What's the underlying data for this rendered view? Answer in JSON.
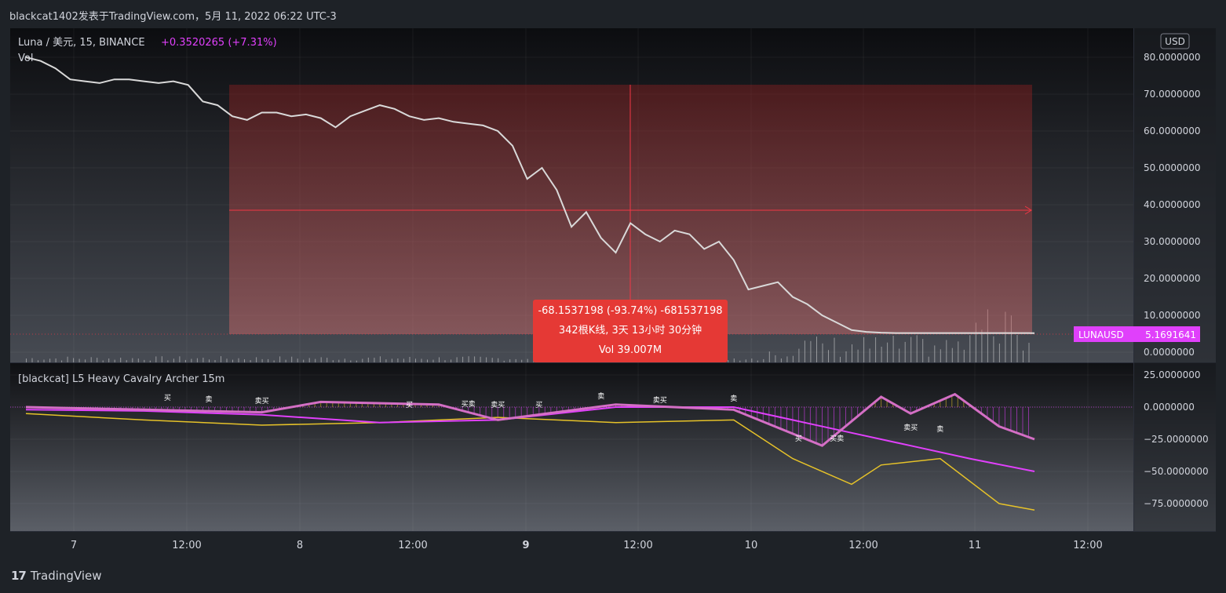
{
  "caption": "blackcat1402发表于TradingView.com，5月 11, 2022 06:22 UTC-3",
  "footer_brand": "TradingView",
  "footer_logo_glyph": "17",
  "currency_button": "USD",
  "legend": {
    "symbol": "Luna / 美元, 15, BINANCE",
    "change": "+0.3520265 (+7.31%)",
    "vol": "Vol"
  },
  "indicator_title": "[blackcat] L5 Heavy Cavalry Archer 15m",
  "measure_box": {
    "line1": "-68.1537198 (-93.74%) -681537198",
    "line2": "342根K线, 3天 13小时 30分钟",
    "line3": "Vol 39.007M"
  },
  "price_tag": {
    "symbol": "LUNAUSD",
    "value": "5.1691641"
  },
  "colors": {
    "background": "#1e2227",
    "price_line": "#d9d9d9",
    "measure_fill": "#f23645",
    "accent_magenta": "#e040fb",
    "accent_yellow": "#e6c229",
    "axis_text": "#d1d4dc"
  },
  "chart_data": [
    {
      "type": "line",
      "title": "Luna / 美元, 15, BINANCE",
      "x_ticks": [
        "7",
        "12:00",
        "8",
        "12:00",
        "9",
        "12:00",
        "10",
        "12:00",
        "11",
        "12:00"
      ],
      "y_ticks": [
        "80.0000000",
        "70.0000000",
        "60.0000000",
        "50.0000000",
        "40.0000000",
        "30.0000000",
        "20.0000000",
        "10.0000000",
        "0.0000000"
      ],
      "ylim": [
        0,
        84
      ],
      "series": [
        {
          "x": [
            0,
            5,
            10,
            15,
            20,
            25,
            30,
            35,
            40,
            45,
            50,
            55,
            60,
            65,
            70,
            75,
            80,
            85,
            90,
            95,
            100,
            105,
            110,
            115,
            120,
            125,
            130,
            135,
            140,
            145,
            150,
            155,
            160,
            165,
            170,
            175,
            180,
            185,
            190,
            195,
            200,
            205,
            210,
            215,
            220,
            225,
            230,
            235,
            240,
            245,
            250,
            255,
            260,
            265,
            270,
            275,
            280,
            285,
            290,
            295,
            300,
            305,
            310,
            315,
            320,
            325,
            330,
            335,
            340,
            342
          ],
          "values": [
            80.0,
            79.0,
            77.0,
            74.0,
            73.5,
            73.0,
            74.0,
            74.0,
            73.5,
            73.0,
            73.5,
            72.5,
            68.0,
            67.0,
            64.0,
            63.0,
            65.0,
            65.0,
            64.0,
            64.5,
            63.5,
            61.0,
            64.0,
            65.5,
            67.0,
            66.0,
            64.0,
            63.0,
            63.5,
            62.5,
            62.0,
            61.5,
            60.0,
            56.0,
            47.0,
            50.0,
            44.0,
            34.0,
            38.0,
            31.0,
            27.0,
            35.0,
            32.0,
            30.0,
            33.0,
            32.0,
            28.0,
            30.0,
            25.0,
            17.0,
            18.0,
            19.0,
            15.0,
            13.0,
            10.0,
            8.0,
            6.0,
            5.5,
            5.3,
            5.2,
            5.2,
            5.2,
            5.2,
            5.2,
            5.2,
            5.2,
            5.2,
            5.2,
            5.2,
            5.17
          ]
        }
      ],
      "measure": {
        "start_price": 72.7,
        "end_price": 4.56,
        "change_pct": -93.74,
        "bars": 342
      }
    },
    {
      "type": "line",
      "title": "[blackcat] L5 Heavy Cavalry Archer 15m",
      "y_ticks": [
        "25.0000000",
        "0.0000000",
        "−25.0000000",
        "−50.0000000",
        "−75.0000000"
      ],
      "ylim": [
        -85,
        28
      ],
      "series": [
        {
          "x": [
            0,
            40,
            80,
            120,
            160,
            200,
            240,
            280,
            300,
            320,
            342
          ],
          "values": [
            -2,
            -3,
            -6,
            -12,
            -10,
            0,
            0,
            -20,
            -30,
            -40,
            -50
          ]
        }
      ],
      "markers": [
        "买",
        "卖",
        "买卖",
        "卖买"
      ]
    }
  ]
}
